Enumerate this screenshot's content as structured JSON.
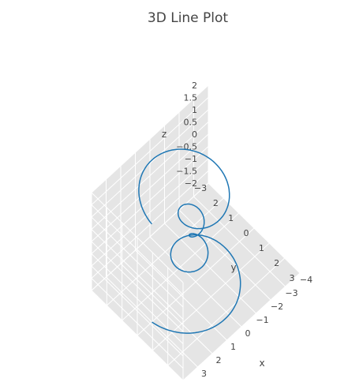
{
  "chart_data": {
    "type": "line",
    "title": "3D Line Plot",
    "xlabel": "x",
    "ylabel": "y",
    "zlabel": "z",
    "x_ticks": [
      "3",
      "2",
      "1",
      "0",
      "−1",
      "−2",
      "−3",
      "−4"
    ],
    "y_ticks": [
      "−3",
      "2",
      "1",
      "0",
      "1",
      "2",
      "3"
    ],
    "z_ticks": [
      "2",
      "1.5",
      "1",
      "0.5",
      "0",
      "−0.5",
      "−1",
      "−1.5",
      "−2"
    ],
    "xlim": [
      -4,
      4
    ],
    "ylim": [
      -3,
      3
    ],
    "zlim": [
      -2,
      2
    ],
    "grid": true,
    "line_color": "#1f77b4",
    "pane_color": "#e5e5e5",
    "series": [
      {
        "curve": "spiral: x = r·cos(t), y = r·sin(t), z = t/(2π) − 2, with radius shrinking to a minimum near z = 0",
        "t_range": [
          0,
          25.13
        ],
        "r_min": 0.3,
        "r_max": 3.0
      }
    ]
  }
}
